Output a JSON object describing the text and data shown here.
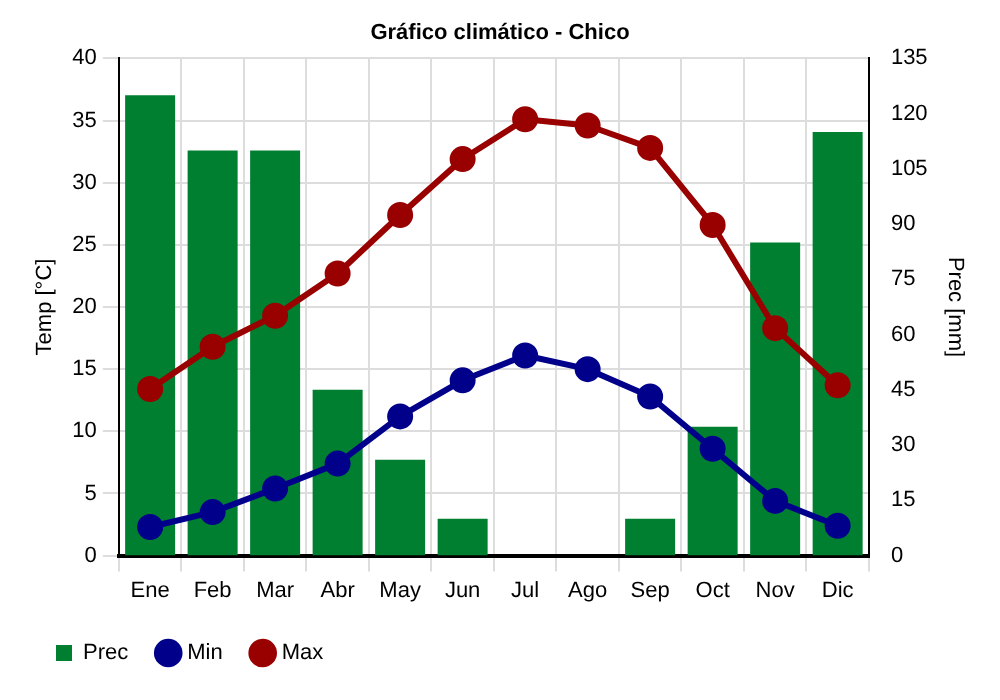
{
  "chart_data": {
    "type": "bar",
    "title": "Gráfico climático - Chico",
    "ylabel": "Temp [°C]",
    "y2label": "Prec [mm]",
    "categories": [
      "Ene",
      "Feb",
      "Mar",
      "Abr",
      "May",
      "Jun",
      "Jul",
      "Ago",
      "Sep",
      "Oct",
      "Nov",
      "Dic"
    ],
    "series": [
      {
        "name": "Prec",
        "axis": "y2",
        "color": "#007f30",
        "values": [
          125,
          110,
          110,
          45,
          26,
          10,
          0,
          0,
          10,
          35,
          85,
          115
        ]
      },
      {
        "name": "Min",
        "type": "line",
        "color": "#00008b",
        "values": [
          2.3,
          3.5,
          5.4,
          7.4,
          11.2,
          14.1,
          16.1,
          15.0,
          12.8,
          8.6,
          4.4,
          2.4
        ]
      },
      {
        "name": "Max",
        "type": "line",
        "color": "#990000",
        "values": [
          13.4,
          16.8,
          19.3,
          22.7,
          27.4,
          31.9,
          35.1,
          34.6,
          32.8,
          26.6,
          18.3,
          13.7
        ]
      }
    ],
    "ylim": [
      0,
      40
    ],
    "yticks": [
      0,
      5,
      10,
      15,
      20,
      25,
      30,
      35,
      40
    ],
    "y2lim": [
      0,
      135
    ],
    "y2ticks": [
      0,
      15,
      30,
      45,
      60,
      75,
      90,
      105,
      120,
      135
    ],
    "grid": true,
    "legend": "bottom left",
    "marker": "circle",
    "line_style": "solid"
  }
}
